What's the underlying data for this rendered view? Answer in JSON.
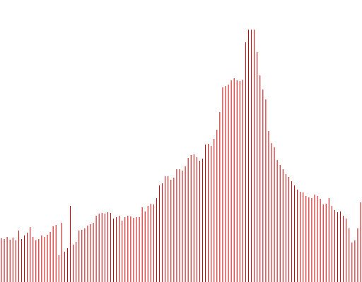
{
  "chart_data": {
    "type": "bar",
    "title": "",
    "xlabel": "",
    "ylabel": "",
    "ylim": [
      0,
      360
    ],
    "grid": false,
    "legend": "none",
    "bar_color": "#cc0000",
    "values": [
      62,
      61,
      64,
      60,
      63,
      59,
      73,
      61,
      66,
      70,
      78,
      64,
      59,
      61,
      66,
      64,
      67,
      71,
      79,
      81,
      38,
      84,
      43,
      48,
      108,
      53,
      57,
      73,
      74,
      76,
      80,
      82,
      84,
      94,
      97,
      98,
      97,
      99,
      98,
      90,
      92,
      94,
      87,
      92,
      94,
      93,
      91,
      92,
      92,
      106,
      100,
      108,
      111,
      110,
      119,
      137,
      140,
      150,
      150,
      145,
      148,
      160,
      160,
      158,
      164,
      176,
      180,
      181,
      177,
      172,
      175,
      195,
      196,
      193,
      203,
      216,
      241,
      276,
      278,
      280,
      286,
      289,
      286,
      285,
      287,
      340,
      358,
      358,
      358,
      326,
      293,
      273,
      259,
      214,
      197,
      191,
      173,
      166,
      160,
      153,
      149,
      143,
      137,
      131,
      128,
      127,
      122,
      120,
      119,
      124,
      122,
      118,
      110,
      111,
      119,
      108,
      102,
      99,
      100,
      94,
      90,
      76,
      56,
      59,
      76,
      113
    ]
  }
}
